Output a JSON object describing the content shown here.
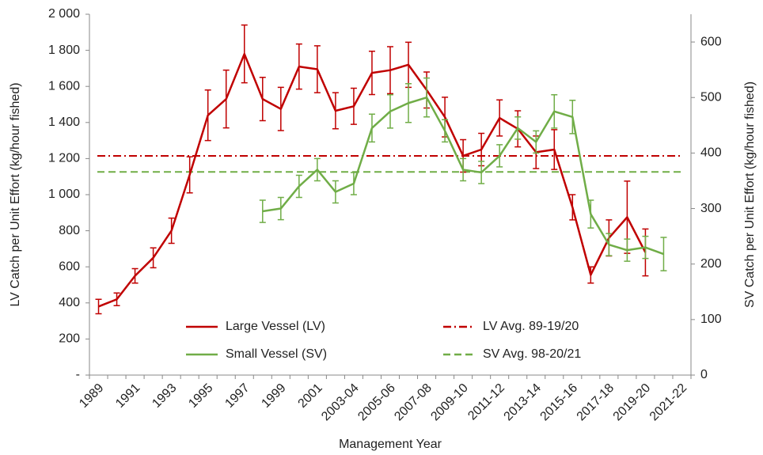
{
  "chart_data": {
    "type": "line",
    "x_label": "Management Year",
    "y_label": "LV Catch per Unit Effort (kg/hour fished)",
    "y2_label": "SV Catch per Unit Effort (kg/hour fished)",
    "categories": [
      "1989",
      null,
      "1991",
      null,
      "1993",
      null,
      "1995",
      null,
      "1997",
      null,
      "1999",
      null,
      "2001",
      null,
      "2003-04",
      null,
      "2005-06",
      null,
      "2007-08",
      null,
      "2009-10",
      null,
      "2011-12",
      null,
      "2013-14",
      null,
      "2015-16",
      null,
      "2017-18",
      null,
      "2019-20",
      null,
      "2021-22"
    ],
    "series": [
      {
        "name": "Large Vessel (LV)",
        "color": "#c00000",
        "axis": "y",
        "values": [
          380,
          420,
          550,
          650,
          800,
          1110,
          1440,
          1530,
          1780,
          1530,
          1475,
          1710,
          1695,
          1465,
          1490,
          1675,
          1690,
          1720,
          1580,
          1430,
          1215,
          1250,
          1425,
          1365,
          1235,
          1250,
          930,
          555,
          760,
          875,
          680,
          null,
          null
        ],
        "errors": [
          40,
          35,
          40,
          55,
          70,
          100,
          140,
          160,
          160,
          120,
          120,
          125,
          130,
          100,
          100,
          120,
          130,
          125,
          100,
          110,
          90,
          90,
          100,
          100,
          90,
          110,
          70,
          45,
          100,
          200,
          130,
          null,
          null
        ]
      },
      {
        "name": "Small Vessel (SV)",
        "color": "#70ad47",
        "axis": "y2",
        "values": [
          null,
          null,
          null,
          null,
          null,
          null,
          null,
          null,
          null,
          295,
          300,
          340,
          370,
          330,
          345,
          445,
          475,
          490,
          500,
          440,
          370,
          365,
          395,
          445,
          420,
          475,
          465,
          290,
          235,
          225,
          230,
          218,
          null
        ],
        "errors": [
          null,
          null,
          null,
          null,
          null,
          null,
          null,
          null,
          null,
          20,
          20,
          20,
          20,
          20,
          20,
          25,
          30,
          35,
          35,
          20,
          20,
          20,
          20,
          20,
          20,
          30,
          30,
          25,
          20,
          20,
          20,
          30,
          null
        ]
      }
    ],
    "reference_lines": [
      {
        "name": "LV Avg. 89-19/20",
        "value": 1215,
        "axis": "y",
        "color": "#c00000",
        "dash": "dash-dot"
      },
      {
        "name": "SV Avg. 98-20/21",
        "value": 366,
        "axis": "y2",
        "color": "#70ad47",
        "dash": "dash"
      }
    ],
    "ylim": [
      0,
      2000
    ],
    "yticks": [
      {
        "value": 0,
        "label": "-"
      },
      200,
      400,
      600,
      800,
      {
        "value": 1000,
        "label": "1 000"
      },
      {
        "value": 1200,
        "label": "1 200"
      },
      {
        "value": 1400,
        "label": "1 400"
      },
      {
        "value": 1600,
        "label": "1 600"
      },
      {
        "value": 1800,
        "label": "1 800"
      },
      {
        "value": 2000,
        "label": "2 000"
      }
    ],
    "y2lim": [
      0,
      650
    ],
    "y2ticks": [
      0,
      100,
      200,
      300,
      400,
      500,
      600
    ],
    "grid": false,
    "legend": "inside-bottom"
  }
}
